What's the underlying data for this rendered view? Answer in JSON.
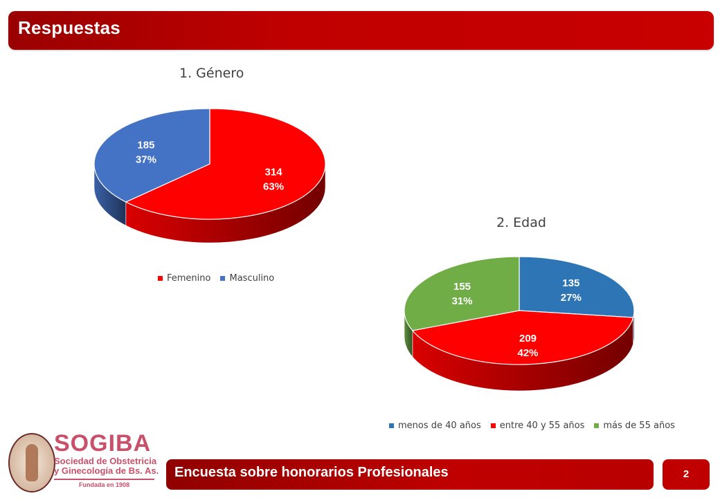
{
  "header": {
    "title": "Respuestas"
  },
  "chart_data": [
    {
      "type": "pie",
      "title": "1. Género",
      "categories": [
        "Femenino",
        "Masculino"
      ],
      "values": [
        314,
        185
      ],
      "percent_labels": [
        "63%",
        "37%"
      ],
      "colors": [
        "#ff0000",
        "#4472c4"
      ],
      "legend_position": "bottom",
      "three_d": true
    },
    {
      "type": "pie",
      "title": "2. Edad",
      "categories": [
        "menos de 40 años",
        "entre 40 y 55 años",
        "más de 55 años"
      ],
      "values": [
        135,
        209,
        155
      ],
      "percent_labels": [
        "27%",
        "42%",
        "31%"
      ],
      "colors": [
        "#2e75b6",
        "#ff0000",
        "#70ad47"
      ],
      "legend_position": "bottom",
      "three_d": true
    }
  ],
  "footer": {
    "text": "Encuesta sobre honorarios Profesionales",
    "page_number": "2"
  },
  "logo": {
    "name": "SOGIBA",
    "subtitle_line1": "Sociedad de Obstetricia",
    "subtitle_line2": "y Ginecología de Bs. As.",
    "founded": "Fundada en 1908"
  }
}
